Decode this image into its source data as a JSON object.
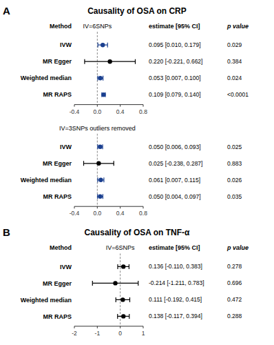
{
  "chart_data": [
    {
      "type": "forest",
      "title": "Causality of OSA on CRP",
      "subtitle": "IV=6SNPs",
      "annotations": {
        "panel": "A",
        "method_header": "Method",
        "ci_header": "estimate [95% CI]",
        "p_header": "p value"
      },
      "categories": [
        "IVW",
        "MR Egger",
        "Weighted median",
        "MR RAPS"
      ],
      "values": [
        0.095,
        0.22,
        0.053,
        0.109
      ],
      "ci_low": [
        0.01,
        -0.221,
        0.007,
        0.079
      ],
      "ci_high": [
        0.179,
        0.662,
        0.1,
        0.14
      ],
      "colors": [
        "#1a3f8f",
        "#000000",
        "#1a3f8f",
        "#1a3f8f"
      ],
      "value_labels": [
        "0.095 [0.010, 0.179]",
        "0.220 [-0.221, 0.662]",
        "0.053 [0.007, 0.100]",
        "0.109 [0.079, 0.140]"
      ],
      "p_labels": [
        "0.029",
        "0.384",
        "0.024",
        "<0.0001"
      ],
      "reference_line": 0,
      "xlim": [
        -0.4,
        0.8
      ],
      "xticks": [
        -0.4,
        {
          "value": 0.0,
          "label": "0.0"
        },
        0.4,
        0.8
      ],
      "grid": false
    },
    {
      "type": "forest",
      "subtitle": "IV=3SNPs outliers removed",
      "categories": [
        "IVW",
        "MR Egger",
        "Weighted median",
        "MR RAPS"
      ],
      "values": [
        0.05,
        0.025,
        0.061,
        0.05
      ],
      "ci_low": [
        0.006,
        -0.238,
        0.007,
        0.004
      ],
      "ci_high": [
        0.093,
        0.287,
        0.115,
        0.097
      ],
      "colors": [
        "#1a3f8f",
        "#000000",
        "#1a3f8f",
        "#1a3f8f"
      ],
      "value_labels": [
        "0.050 [0.006, 0.093]",
        "0.025 [-0.238, 0.287]",
        "0.061 [0.007, 0.115]",
        "0.050 [0.004, 0.097]"
      ],
      "p_labels": [
        "0.025",
        "0.883",
        "0.026",
        "0.035"
      ],
      "reference_line": 0,
      "xlim": [
        -0.4,
        0.8
      ],
      "xticks": [
        -0.4,
        {
          "value": 0.0,
          "label": "0.0"
        },
        0.4,
        0.8
      ],
      "grid": false
    },
    {
      "type": "forest",
      "title": "Causality of OSA on TNF-α",
      "subtitle": "IV=6SNPs",
      "annotations": {
        "panel": "B",
        "method_header": "Method",
        "ci_header": "estimate [95% CI]",
        "p_header": "p value"
      },
      "categories": [
        "IVW",
        "MR Egger",
        "Weighted median",
        "MR RAPS"
      ],
      "values": [
        0.136,
        -0.214,
        0.111,
        0.138
      ],
      "ci_low": [
        -0.11,
        -1.211,
        -0.192,
        -0.117
      ],
      "ci_high": [
        0.383,
        0.783,
        0.415,
        0.394
      ],
      "colors": [
        "#000000",
        "#000000",
        "#000000",
        "#000000"
      ],
      "value_labels": [
        "0.136 [-0.110, 0.383]",
        "-0.214 [-1.211, 0.783]",
        "0.111 [-0.192, 0.415]",
        "0.138 [-0.117, 0.394]"
      ],
      "p_labels": [
        "0.278",
        "0.696",
        "0.472",
        "0.288"
      ],
      "reference_line": 0,
      "xlim": [
        -2.0,
        1.0
      ],
      "xticks": [
        -2,
        -1,
        0,
        1
      ],
      "grid": false
    }
  ]
}
